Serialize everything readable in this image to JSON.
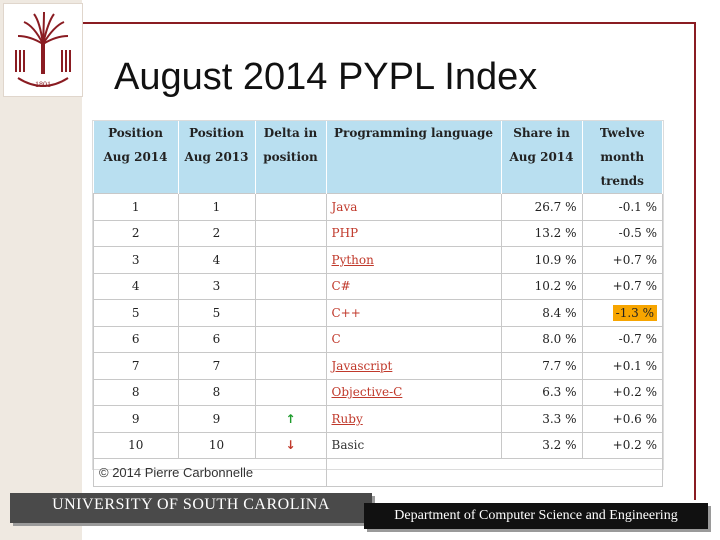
{
  "slide": {
    "title": "August 2014 PYPL Index",
    "footer_left": "UNIVERSITY OF SOUTH CAROLINA",
    "footer_right": "Department of Computer Science and Engineering",
    "logo_text": "1801"
  },
  "table": {
    "headers": [
      {
        "line1": "Position",
        "line2": "Aug 2014"
      },
      {
        "line1": "Position",
        "line2": "Aug 2013"
      },
      {
        "line1": "Delta in",
        "line2": "position"
      },
      {
        "line1": "Programming language",
        "line2": ""
      },
      {
        "line1": "Share in",
        "line2": "Aug 2014"
      },
      {
        "line1": "Twelve month",
        "line2": "trends"
      }
    ],
    "rows": [
      {
        "pos2014": "1",
        "pos2013": "1",
        "delta": "",
        "language": "Java",
        "share": "26.7 %",
        "trend": "-0.1 %"
      },
      {
        "pos2014": "2",
        "pos2013": "2",
        "delta": "",
        "language": "PHP",
        "share": "13.2 %",
        "trend": "-0.5 %"
      },
      {
        "pos2014": "3",
        "pos2013": "4",
        "delta": "",
        "language": "Python",
        "share": "10.9 %",
        "trend": "+0.7 %"
      },
      {
        "pos2014": "4",
        "pos2013": "3",
        "delta": "",
        "language": "C#",
        "share": "10.2 %",
        "trend": "+0.7 %"
      },
      {
        "pos2014": "5",
        "pos2013": "5",
        "delta": "",
        "language": "C++",
        "share": "8.4 %",
        "trend": "-1.3 %"
      },
      {
        "pos2014": "6",
        "pos2013": "6",
        "delta": "",
        "language": "C",
        "share": "8.0 %",
        "trend": "-0.7 %"
      },
      {
        "pos2014": "7",
        "pos2013": "7",
        "delta": "",
        "language": "Javascript",
        "share": "7.7 %",
        "trend": "+0.1 %"
      },
      {
        "pos2014": "8",
        "pos2013": "8",
        "delta": "",
        "language": "Objective-C",
        "share": "6.3 %",
        "trend": "+0.2 %"
      },
      {
        "pos2014": "9",
        "pos2013": "9",
        "delta": "↑",
        "language": "Ruby",
        "share": "3.3 %",
        "trend": "+0.6 %"
      },
      {
        "pos2014": "10",
        "pos2013": "10",
        "delta": "↓",
        "language": "Basic",
        "share": "3.2 %",
        "trend": "+0.2 %"
      }
    ],
    "footer": "© 2014 Pierre Carbonnelle",
    "colors": {
      "header_bg": "#b9dff0",
      "link": "#c0392b",
      "up_arrow": "#1e9b2c",
      "down_arrow": "#c0392b",
      "highlight": "#f7a500"
    }
  }
}
